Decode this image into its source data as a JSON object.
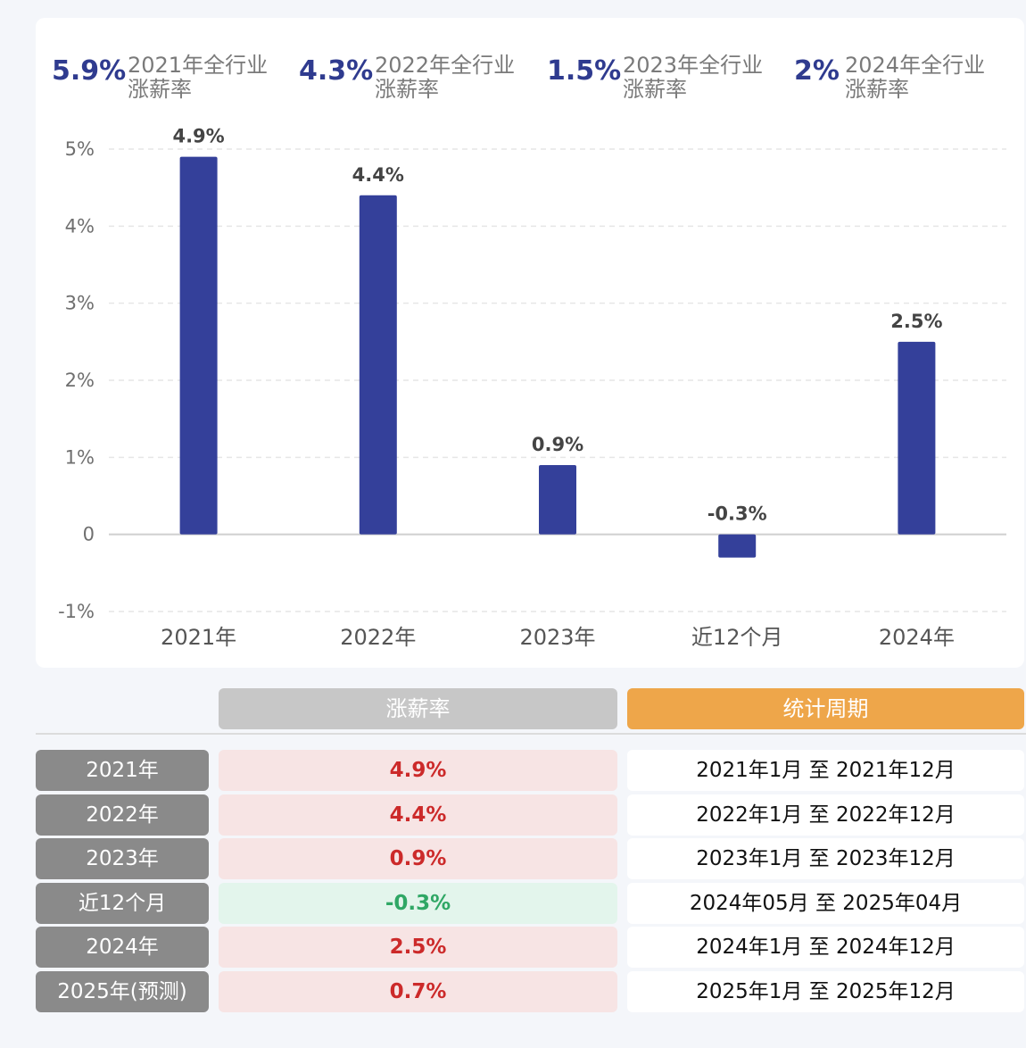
{
  "summary": [
    {
      "value": "5.9%",
      "label_line1": "2021年全行业",
      "label_line2": "涨薪率"
    },
    {
      "value": "4.3%",
      "label_line1": "2022年全行业",
      "label_line2": "涨薪率"
    },
    {
      "value": "1.5%",
      "label_line1": "2023年全行业",
      "label_line2": "涨薪率"
    },
    {
      "value": "2%",
      "label_line1": "2024年全行业",
      "label_line2": "涨薪率"
    }
  ],
  "chart_data": {
    "type": "bar",
    "categories": [
      "2021年",
      "2022年",
      "2023年",
      "近12个月",
      "2024年"
    ],
    "values": [
      4.9,
      4.4,
      0.9,
      -0.3,
      2.5
    ],
    "data_labels": [
      "4.9%",
      "4.4%",
      "0.9%",
      "-0.3%",
      "2.5%"
    ],
    "ylim": [
      -1,
      5
    ],
    "yticks": [
      5,
      4,
      3,
      2,
      1,
      0,
      -1
    ],
    "ytick_labels": [
      "5%",
      "4%",
      "3%",
      "2%",
      "1%",
      "0",
      "-1%"
    ],
    "grid": true,
    "bar_color": "#34409a"
  },
  "table": {
    "headers": {
      "rate": "涨薪率",
      "period": "统计周期"
    },
    "rows": [
      {
        "year": "2021年",
        "rate": "4.9%",
        "sign": "pos",
        "period": "2021年1月 至 2021年12月"
      },
      {
        "year": "2022年",
        "rate": "4.4%",
        "sign": "pos",
        "period": "2022年1月 至 2022年12月"
      },
      {
        "year": "2023年",
        "rate": "0.9%",
        "sign": "pos",
        "period": "2023年1月 至 2023年12月"
      },
      {
        "year": "近12个月",
        "rate": "-0.3%",
        "sign": "neg",
        "period": "2024年05月 至 2025年04月"
      },
      {
        "year": "2024年",
        "rate": "2.5%",
        "sign": "pos",
        "period": "2024年1月 至 2024年12月"
      },
      {
        "year": "2025年(预测)",
        "rate": "0.7%",
        "sign": "pos",
        "period": "2025年1月 至 2025年12月"
      }
    ]
  }
}
